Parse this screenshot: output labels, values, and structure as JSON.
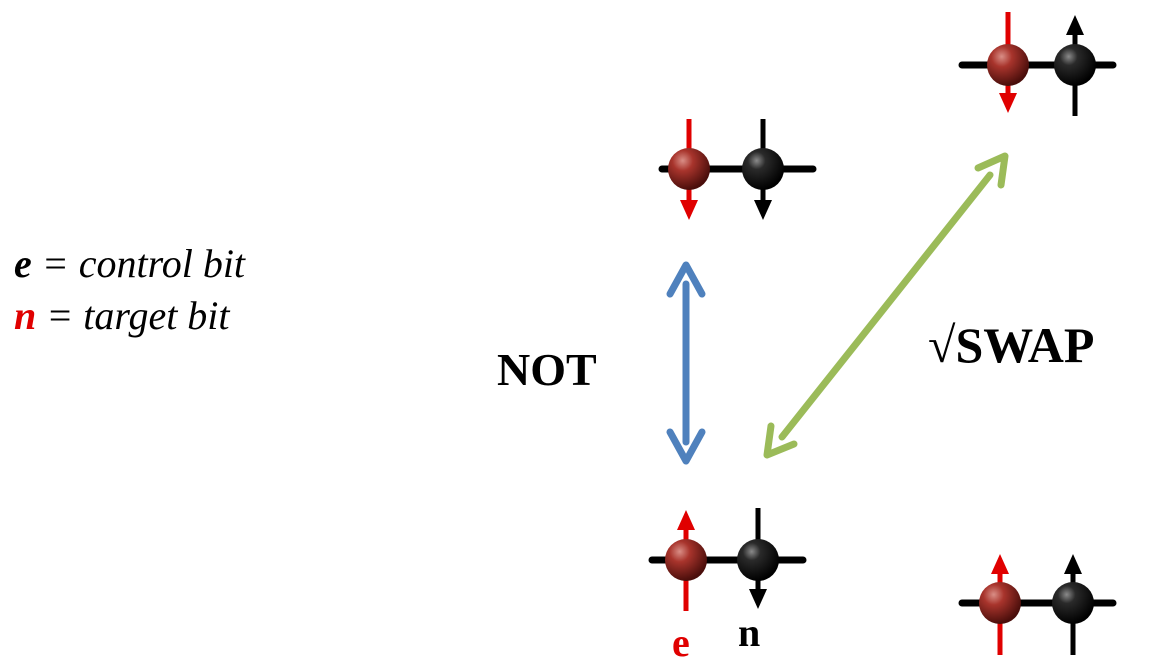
{
  "legend": {
    "e_symbol": "e",
    "e_text": " = control bit",
    "n_symbol": "n",
    "n_text": " = target bit"
  },
  "gates": {
    "not_label": "NOT",
    "swap_label": "√SWAP"
  },
  "qubits": {
    "e_label": "e",
    "n_label": "n"
  },
  "states": [
    {
      "name": "down-down",
      "electron": "down",
      "nucleus": "down"
    },
    {
      "name": "down-up",
      "electron": "down",
      "nucleus": "up"
    },
    {
      "name": "up-down",
      "electron": "up",
      "nucleus": "down"
    },
    {
      "name": "up-up",
      "electron": "up",
      "nucleus": "up"
    }
  ],
  "colors": {
    "electron_spin": "#e00000",
    "nucleus_spin": "#000000",
    "not_arrow": "#4f81bd",
    "swap_arrow": "#9bbb59"
  }
}
